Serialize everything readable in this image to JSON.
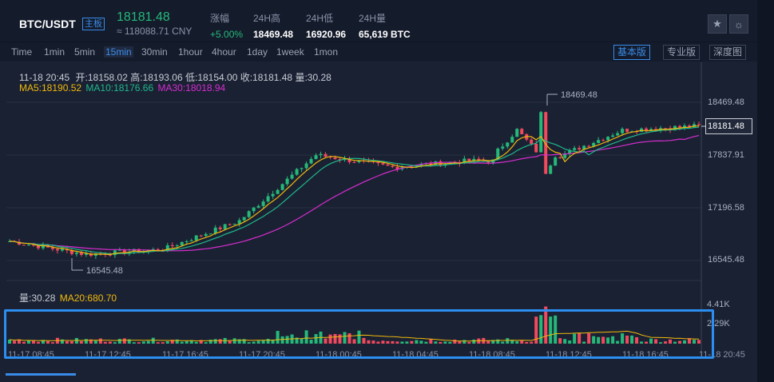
{
  "header": {
    "pair": "BTC/USDT",
    "badge": "主板",
    "price": "18181.48",
    "price_cny": "≈ 118088.71 CNY",
    "stats": [
      {
        "label": "涨幅",
        "value": "+5.00%"
      },
      {
        "label": "24H高",
        "value": "18469.48"
      },
      {
        "label": "24H低",
        "value": "16920.96"
      },
      {
        "label": "24H量",
        "value": "65,619 BTC"
      }
    ],
    "icons": [
      "star-icon",
      "sun-icon"
    ]
  },
  "timeframes": [
    "Time",
    "1min",
    "5min",
    "15min",
    "30min",
    "1hour",
    "4hour",
    "1day",
    "1week",
    "1mon"
  ],
  "active_timeframe": "15min",
  "view_buttons": [
    "基本版",
    "专业版",
    "深度图"
  ],
  "selected_view": "基本版",
  "ohlc_line": {
    "time": "11-18 20:45",
    "open": "开:18158.02",
    "high": "高:18193.06",
    "low": "低:18154.00",
    "close": "收:18181.48",
    "vol": "量:30.28"
  },
  "ma_line": {
    "ma5": "MA5:18190.52",
    "ma10": "MA10:18176.66",
    "ma30": "MA30:18018.94"
  },
  "volume_info": {
    "vol": "量:30.28",
    "ma20": "MA20:680.70"
  },
  "price_axis": [
    "18469.48",
    "17837.91",
    "17196.58",
    "16545.48"
  ],
  "current_price_tag": "18181.48",
  "volume_axis": [
    "4.41K",
    "2.29K"
  ],
  "time_axis": [
    "11-17 08:45",
    "11-17 12:45",
    "11-17 16:45",
    "11-17 20:45",
    "11-18 00:45",
    "11-18 04:45",
    "11-18 08:45",
    "11-18 12:45",
    "11-18 16:45",
    "11-18 20:45"
  ],
  "annotations": {
    "high": "18469.48",
    "low": "16545.48"
  },
  "colors": {
    "up": "#25b979",
    "down": "#f2495e",
    "ma5": "#f0b90b",
    "ma10": "#1fb88b",
    "ma30": "#d62dcf",
    "accent": "#3a8ce8"
  },
  "chart_data": {
    "type": "candlestick",
    "interval": "15min",
    "price_ylim": [
      16545.48,
      18469.48
    ],
    "anchors": [
      {
        "time": "11-17 08:45",
        "close": 16780
      },
      {
        "time": "11-17 12:45",
        "close": 16620
      },
      {
        "time": "11-17 16:45",
        "close": 16680
      },
      {
        "time": "11-17 20:45",
        "close": 17030
      },
      {
        "time": "11-18 00:45",
        "close": 17830
      },
      {
        "time": "11-18 04:45",
        "close": 17680
      },
      {
        "time": "11-18 08:45",
        "close": 17760
      },
      {
        "time": "11-18 12:45",
        "close": 17750
      },
      {
        "time": "11-18 16:45",
        "close": 18130
      },
      {
        "time": "11-18 20:45",
        "close": 18181.48
      }
    ],
    "volume_ylim": [
      0,
      4410
    ]
  }
}
